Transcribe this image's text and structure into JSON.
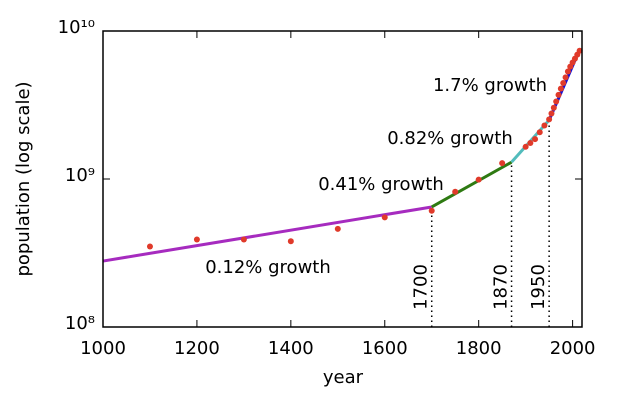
{
  "chart_data": {
    "type": "line",
    "xlabel": "year",
    "ylabel": "population (log scale)",
    "xlim": [
      1000,
      2020
    ],
    "ylim": [
      100000000,
      10000000000
    ],
    "log_y": true,
    "xticks": [
      1000,
      1200,
      1400,
      1600,
      1800,
      2000
    ],
    "yticks": [
      {
        "value": 100000000,
        "label": "10⁸"
      },
      {
        "value": 1000000000,
        "label": "10⁹"
      },
      {
        "value": 10000000000,
        "label": "10¹⁰"
      }
    ],
    "series": [
      {
        "name": "0.12% growth",
        "color": "#a62bbf",
        "x": [
          1000,
          1700
        ],
        "values": [
          279000000,
          647000000
        ]
      },
      {
        "name": "0.41% growth",
        "color": "#2e7a12",
        "x": [
          1700,
          1870
        ],
        "values": [
          647000000,
          1300000000
        ]
      },
      {
        "name": "0.82% growth",
        "color": "#52bcbc",
        "x": [
          1870,
          1950
        ],
        "values": [
          1300000000,
          2500000000
        ]
      },
      {
        "name": "1.7% growth",
        "color": "#1010d8",
        "x": [
          1950,
          2010
        ],
        "values": [
          2500000000,
          6900000000
        ]
      }
    ],
    "points": {
      "color": "#e03a2a",
      "x": [
        1100,
        1200,
        1300,
        1400,
        1500,
        1600,
        1700,
        1750,
        1800,
        1850,
        1900,
        1910,
        1920,
        1930,
        1940,
        1950,
        1955,
        1960,
        1965,
        1970,
        1975,
        1980,
        1985,
        1990,
        1995,
        2000,
        2005,
        2010,
        2015
      ],
      "values": [
        350000000,
        390000000,
        390000000,
        380000000,
        460000000,
        550000000,
        610000000,
        820000000,
        990000000,
        1280000000,
        1650000000,
        1750000000,
        1860000000,
        2070000000,
        2300000000,
        2530000000,
        2770000000,
        3030000000,
        3340000000,
        3700000000,
        4080000000,
        4450000000,
        4860000000,
        5330000000,
        5740000000,
        6130000000,
        6510000000,
        6920000000,
        7350000000
      ]
    },
    "vlines": [
      1700,
      1870,
      1950
    ]
  }
}
